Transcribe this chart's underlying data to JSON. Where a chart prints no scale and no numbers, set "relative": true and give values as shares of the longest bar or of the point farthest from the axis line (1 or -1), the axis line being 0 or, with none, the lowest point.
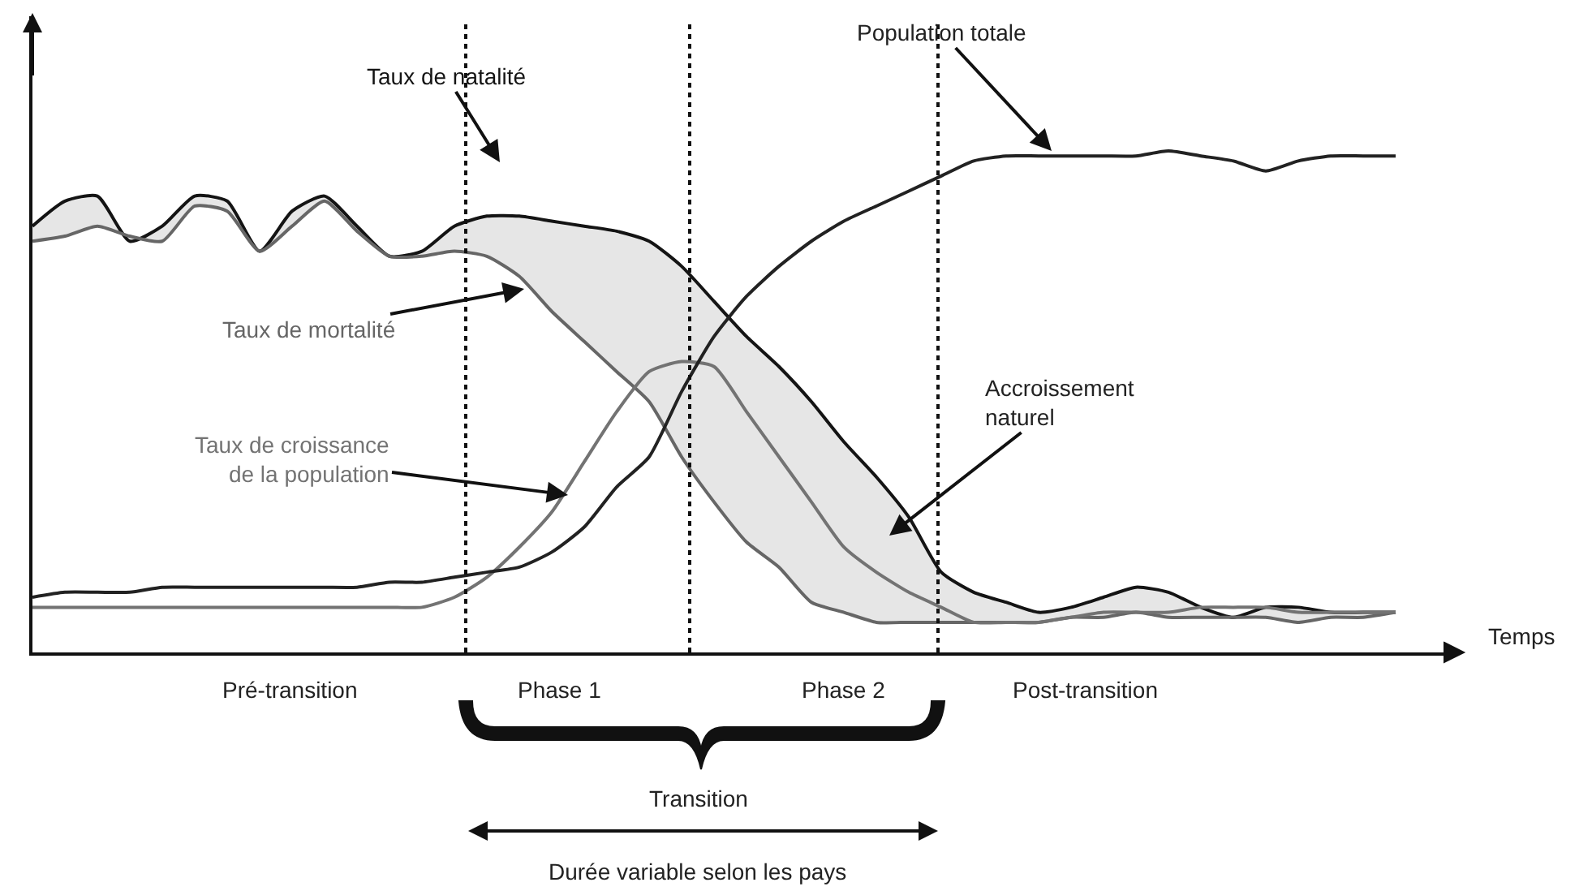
{
  "chart_data": {
    "type": "line",
    "relative": true,
    "xlabel": "Temps",
    "legend": false,
    "categories": [
      null,
      null,
      null,
      null,
      null,
      null,
      null,
      null,
      null,
      null,
      null,
      null,
      null,
      null,
      null,
      null,
      null,
      null,
      null,
      null,
      null,
      null,
      null,
      null,
      null,
      null,
      null,
      null,
      null,
      null,
      null,
      null,
      null,
      null,
      null,
      null,
      null,
      null,
      null,
      null,
      null,
      null,
      null
    ],
    "series": [
      {
        "name": "Taux de natalité",
        "color": "#141414",
        "values": [
          0.85,
          0.9,
          0.91,
          0.82,
          0.85,
          0.91,
          0.9,
          0.8,
          0.88,
          0.91,
          0.85,
          0.79,
          0.8,
          0.85,
          0.87,
          0.87,
          0.86,
          0.85,
          0.84,
          0.82,
          0.77,
          0.7,
          0.63,
          0.57,
          0.5,
          0.42,
          0.35,
          0.27,
          0.16,
          0.12,
          0.1,
          0.08,
          0.09,
          0.11,
          0.13,
          0.12,
          0.09,
          0.07,
          0.09,
          0.09,
          0.08,
          0.08,
          0.08
        ],
        "lower": [
          0.82,
          0.83,
          0.85,
          0.83,
          0.82,
          0.89,
          0.88,
          0.8,
          0.85,
          0.9,
          0.84,
          0.79,
          0.79,
          0.8,
          0.79,
          0.75,
          0.68,
          0.62,
          0.56,
          0.5,
          0.39,
          0.3,
          0.22,
          0.17,
          0.1,
          0.08,
          0.06,
          0.06,
          0.06,
          0.06,
          0.06,
          0.06,
          0.07,
          0.07,
          0.08,
          0.07,
          0.07,
          0.07,
          0.07,
          0.06,
          0.07,
          0.07,
          0.08
        ],
        "upper": [
          0.85,
          0.9,
          0.91,
          0.82,
          0.85,
          0.91,
          0.9,
          0.8,
          0.88,
          0.91,
          0.85,
          0.79,
          0.8,
          0.85,
          0.87,
          0.87,
          0.86,
          0.85,
          0.84,
          0.82,
          0.77,
          0.7,
          0.63,
          0.57,
          0.5,
          0.42,
          0.35,
          0.27,
          0.16,
          0.12,
          0.1,
          0.08,
          0.09,
          0.11,
          0.13,
          0.12,
          0.09,
          0.07,
          0.09,
          0.09,
          0.08,
          0.08,
          0.08
        ]
      },
      {
        "name": "Taux de mortalité",
        "color": "#666666",
        "values": [
          0.82,
          0.83,
          0.85,
          0.83,
          0.82,
          0.89,
          0.88,
          0.8,
          0.85,
          0.9,
          0.84,
          0.79,
          0.79,
          0.8,
          0.79,
          0.75,
          0.68,
          0.62,
          0.56,
          0.5,
          0.39,
          0.3,
          0.22,
          0.17,
          0.1,
          0.08,
          0.06,
          0.06,
          0.06,
          0.06,
          0.06,
          0.06,
          0.07,
          0.07,
          0.08,
          0.07,
          0.07,
          0.07,
          0.07,
          0.06,
          0.07,
          0.07,
          0.08
        ]
      },
      {
        "name": "Taux de croissance\nde la population",
        "color": "#737373",
        "values": [
          0.09,
          0.09,
          0.09,
          0.09,
          0.09,
          0.09,
          0.09,
          0.09,
          0.09,
          0.09,
          0.09,
          0.09,
          0.09,
          0.11,
          0.15,
          0.21,
          0.28,
          0.38,
          0.48,
          0.56,
          0.58,
          0.57,
          0.48,
          0.39,
          0.3,
          0.21,
          0.16,
          0.12,
          0.09,
          0.06,
          0.06,
          0.06,
          0.07,
          0.08,
          0.08,
          0.08,
          0.09,
          0.09,
          0.09,
          0.08,
          0.08,
          0.08,
          0.08
        ]
      },
      {
        "name": "Population totale",
        "color": "#222222",
        "values": [
          0.11,
          0.12,
          0.12,
          0.12,
          0.13,
          0.13,
          0.13,
          0.13,
          0.13,
          0.13,
          0.13,
          0.14,
          0.14,
          0.15,
          0.16,
          0.17,
          0.2,
          0.25,
          0.33,
          0.39,
          0.52,
          0.63,
          0.71,
          0.77,
          0.82,
          0.86,
          0.89,
          0.92,
          0.95,
          0.98,
          0.99,
          0.99,
          0.99,
          0.99,
          0.99,
          1.0,
          0.99,
          0.98,
          0.96,
          0.98,
          0.99,
          0.99,
          0.99
        ]
      }
    ],
    "annotations": [
      "Pré-transition",
      "Phase 1",
      "Phase 2",
      "Post-transition",
      "Transition",
      "Durée variable selon les pays",
      "Accroissement\nnaturel"
    ]
  }
}
